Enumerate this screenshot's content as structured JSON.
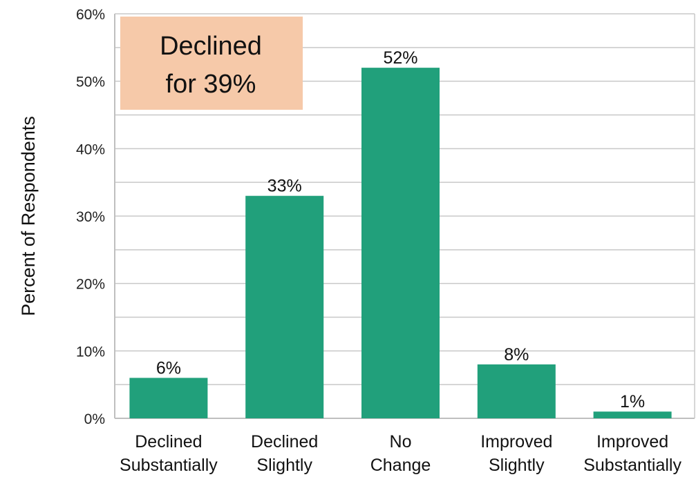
{
  "chart_data": {
    "type": "bar",
    "categories": [
      [
        "Declined",
        "Substantially"
      ],
      [
        "Declined",
        "Slightly"
      ],
      [
        "No",
        "Change"
      ],
      [
        "Improved",
        "Slightly"
      ],
      [
        "Improved",
        "Substantially"
      ]
    ],
    "values": [
      6,
      33,
      52,
      8,
      1
    ],
    "data_labels": [
      "6%",
      "33%",
      "52%",
      "8%",
      "1%"
    ],
    "ylabel": "Percent of Respondents",
    "ylim": [
      0,
      60
    ],
    "y_ticks": [
      "0%",
      "10%",
      "20%",
      "30%",
      "40%",
      "50%",
      "60%"
    ],
    "grid": true,
    "bar_color": "#21a07b",
    "annotation": {
      "lines": [
        "Declined",
        "for 39%"
      ],
      "background": "#f6c9a9",
      "placement": "top-left"
    }
  }
}
